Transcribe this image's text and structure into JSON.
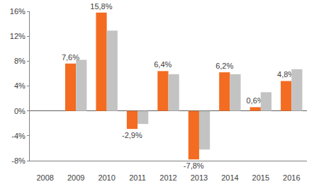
{
  "chart_data": {
    "type": "bar",
    "categories": [
      "2008",
      "2009",
      "2010",
      "2011",
      "2012",
      "2013",
      "2014",
      "2015",
      "2016"
    ],
    "series": [
      {
        "color": "#f36c21",
        "values": [
          null,
          7.6,
          15.8,
          -2.9,
          6.4,
          -7.8,
          6.2,
          0.6,
          4.8
        ],
        "value_labels": [
          null,
          "7,6%",
          "15,8%",
          "-2,9%",
          "6,4%",
          "-7,8%",
          "6,2%",
          "0,6%",
          "4,8%"
        ]
      },
      {
        "color": "#c3c3c3",
        "values": [
          null,
          8.2,
          12.9,
          -2.1,
          5.9,
          -6.2,
          5.9,
          3.0,
          6.7
        ]
      }
    ],
    "ylim": [
      -8,
      16
    ],
    "yticks": [
      {
        "value": -8,
        "label": "-8%"
      },
      {
        "value": -4,
        "label": "-4%"
      },
      {
        "value": 0,
        "label": "0%"
      },
      {
        "value": 4,
        "label": "4%"
      },
      {
        "value": 8,
        "label": "8%"
      },
      {
        "value": 12,
        "label": "12%"
      },
      {
        "value": 16,
        "label": "16%"
      }
    ],
    "grid": false,
    "data_labels": true
  }
}
